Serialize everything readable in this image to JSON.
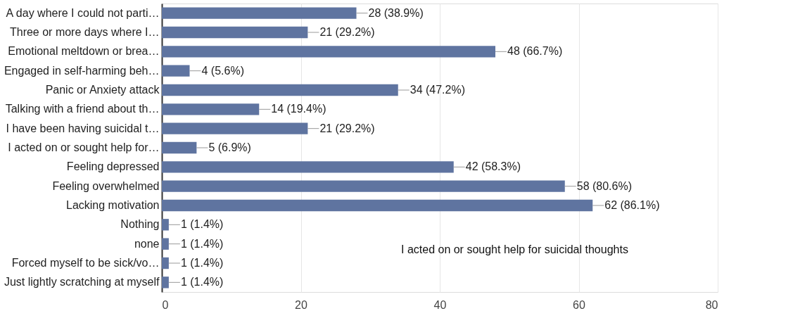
{
  "chart_data": {
    "type": "bar",
    "orientation": "horizontal",
    "categories": [
      "A day where I could not parti…",
      "Three or more days where I…",
      "Emotional meltdown or brea…",
      "Engaged in self-harming beh…",
      "Panic or Anxiety attack",
      "Talking with a friend about th…",
      "I have been having suicidal t…",
      "I acted on or sought help for…",
      "Feeling depressed",
      "Feeling overwhelmed",
      "Lacking motivation",
      "Nothing",
      "none",
      "Forced myself to be sick/vo…",
      "Just lightly scratching at myself"
    ],
    "values": [
      28,
      21,
      48,
      4,
      34,
      14,
      21,
      5,
      42,
      58,
      62,
      1,
      1,
      1,
      1
    ],
    "value_labels": [
      "28 (38.9%)",
      "21 (29.2%)",
      "48 (66.7%)",
      "4 (5.6%)",
      "34 (47.2%)",
      "14 (19.4%)",
      "21 (29.2%)",
      "5 (6.9%)",
      "42 (58.3%)",
      "58 (80.6%)",
      "62 (86.1%)",
      "1 (1.4%)",
      "1 (1.4%)",
      "1 (1.4%)",
      "1 (1.4%)"
    ],
    "color": "#5f74a0",
    "xlim": [
      0,
      80
    ],
    "xticks": [
      0,
      20,
      40,
      60,
      80
    ],
    "grid": "x",
    "annotations": [
      "I acted on or sought help for suicidal thoughts"
    ]
  }
}
